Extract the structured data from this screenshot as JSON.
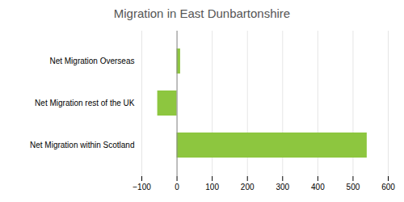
{
  "chart_data": {
    "type": "bar",
    "orientation": "horizontal",
    "title": "Migration in East Dunbartonshire",
    "categories": [
      "Net Migration within Scotland",
      "Net Migration rest of the UK",
      "Net Migration Overseas"
    ],
    "values": [
      540,
      -55,
      10
    ],
    "color": "#8dc63f",
    "xlim": [
      -100,
      600
    ],
    "xticks": [
      -100,
      0,
      100,
      200,
      300,
      400,
      500,
      600
    ],
    "grid": true
  }
}
